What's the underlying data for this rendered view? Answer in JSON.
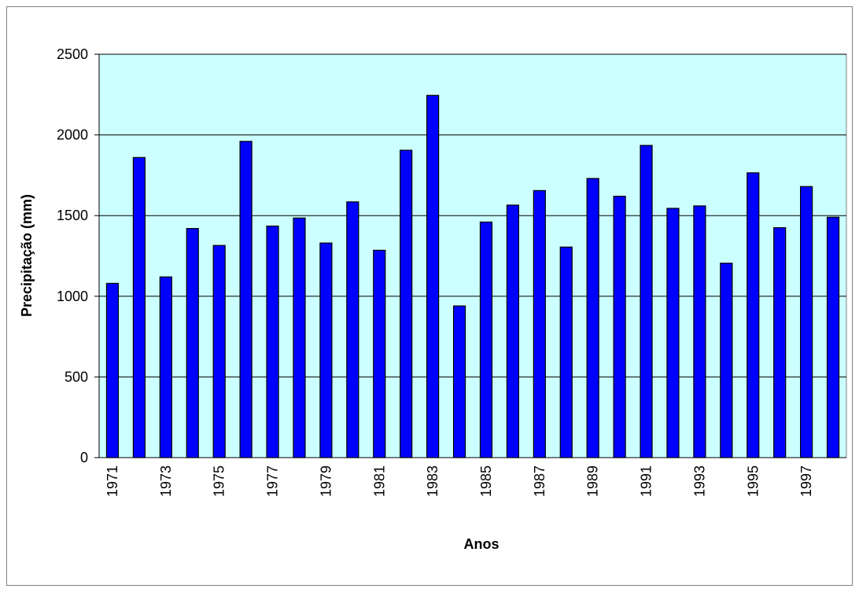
{
  "chart_data": {
    "type": "bar",
    "xlabel": "Anos",
    "ylabel": "Precipitação (mm)",
    "categories": [
      "1971",
      null,
      "1973",
      null,
      "1975",
      null,
      "1977",
      null,
      "1979",
      null,
      "1981",
      null,
      "1983",
      null,
      "1985",
      null,
      "1987",
      null,
      "1989",
      null,
      "1991",
      null,
      "1993",
      null,
      "1995",
      null,
      "1997",
      null
    ],
    "values": [
      1080,
      1860,
      1120,
      1420,
      1315,
      1960,
      1435,
      1485,
      1330,
      1585,
      1285,
      1905,
      2245,
      940,
      1460,
      1565,
      1655,
      1305,
      1730,
      1620,
      1935,
      1545,
      1560,
      1205,
      1765,
      1425,
      1680,
      1490
    ],
    "color": "#0000ff",
    "background": "#ccffff",
    "ylim": [
      0,
      2500
    ],
    "yticks": [
      0,
      500,
      1000,
      1500,
      2000,
      2500
    ],
    "grid": true
  }
}
